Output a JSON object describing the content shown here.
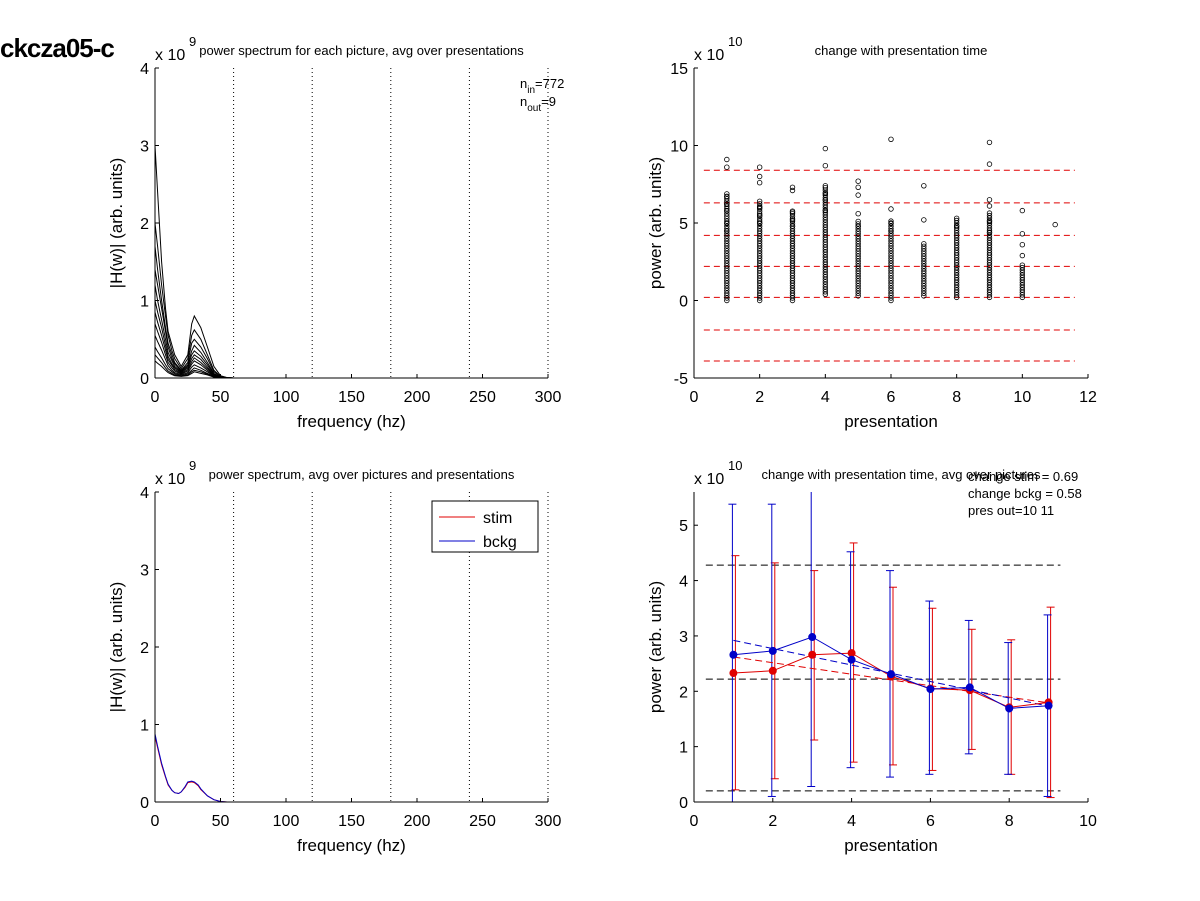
{
  "figure": {
    "suptitle": "ckcza05-c"
  },
  "chart_data": [
    {
      "type": "line",
      "title": "power spectrum for each picture, avg over presentations",
      "xlabel": "frequency (hz)",
      "ylabel": "|H(w)| (arb. units)",
      "xlim": [
        0,
        300
      ],
      "ylim": [
        0,
        4
      ],
      "xticks": [
        0,
        50,
        100,
        150,
        200,
        250,
        300
      ],
      "yticks": [
        0,
        1,
        2,
        3,
        4
      ],
      "y_exponent": {
        "base": "x 10",
        "power": "9"
      },
      "vlines_dotted": [
        60,
        120,
        180,
        240,
        300
      ],
      "annotations": [
        {
          "main": "n",
          "sub": "in",
          "value": "=772"
        },
        {
          "main": "n",
          "sub": "out",
          "value": "=9"
        }
      ],
      "series": [
        {
          "freq": [
            0,
            2,
            5,
            8,
            10,
            13,
            15,
            20,
            25,
            28,
            30,
            35,
            40,
            45,
            50,
            55,
            60,
            300
          ],
          "values": [
            3.0,
            2.4,
            1.5,
            0.9,
            0.6,
            0.42,
            0.3,
            0.15,
            0.3,
            0.7,
            0.8,
            0.65,
            0.4,
            0.15,
            0.03,
            0.005,
            0,
            0
          ]
        },
        {
          "freq": [
            0,
            2,
            5,
            8,
            10,
            13,
            15,
            20,
            25,
            28,
            30,
            35,
            40,
            45,
            50,
            55,
            60,
            300
          ],
          "values": [
            2.0,
            1.7,
            1.2,
            0.8,
            0.55,
            0.35,
            0.25,
            0.12,
            0.25,
            0.55,
            0.62,
            0.5,
            0.3,
            0.1,
            0.02,
            0.004,
            0,
            0
          ]
        },
        {
          "freq": [
            0,
            2,
            5,
            8,
            10,
            13,
            15,
            20,
            25,
            28,
            30,
            35,
            40,
            45,
            50,
            55,
            60,
            300
          ],
          "values": [
            1.7,
            1.4,
            1.0,
            0.65,
            0.45,
            0.3,
            0.2,
            0.1,
            0.2,
            0.45,
            0.5,
            0.4,
            0.25,
            0.08,
            0.02,
            0.003,
            0,
            0
          ]
        },
        {
          "freq": [
            0,
            2,
            5,
            8,
            10,
            13,
            15,
            20,
            25,
            28,
            30,
            35,
            40,
            45,
            50,
            55,
            60,
            300
          ],
          "values": [
            1.4,
            1.2,
            0.9,
            0.6,
            0.4,
            0.25,
            0.18,
            0.09,
            0.17,
            0.35,
            0.42,
            0.33,
            0.2,
            0.06,
            0.015,
            0.003,
            0,
            0
          ]
        },
        {
          "freq": [
            0,
            2,
            5,
            8,
            10,
            13,
            15,
            20,
            25,
            28,
            30,
            35,
            40,
            45,
            50,
            55,
            60,
            300
          ],
          "values": [
            1.2,
            1.0,
            0.75,
            0.5,
            0.33,
            0.22,
            0.15,
            0.08,
            0.15,
            0.3,
            0.35,
            0.28,
            0.17,
            0.05,
            0.012,
            0.002,
            0,
            0
          ]
        },
        {
          "freq": [
            0,
            2,
            5,
            8,
            10,
            13,
            15,
            20,
            25,
            28,
            30,
            35,
            40,
            45,
            50,
            55,
            60,
            300
          ],
          "values": [
            1.0,
            0.85,
            0.65,
            0.42,
            0.28,
            0.18,
            0.13,
            0.07,
            0.13,
            0.25,
            0.3,
            0.24,
            0.14,
            0.04,
            0.01,
            0.002,
            0,
            0
          ]
        },
        {
          "freq": [
            0,
            2,
            5,
            8,
            10,
            13,
            15,
            20,
            25,
            28,
            30,
            35,
            40,
            45,
            50,
            55,
            60,
            300
          ],
          "values": [
            0.85,
            0.72,
            0.55,
            0.36,
            0.24,
            0.16,
            0.11,
            0.06,
            0.11,
            0.21,
            0.26,
            0.2,
            0.12,
            0.035,
            0.008,
            0.002,
            0,
            0
          ]
        },
        {
          "freq": [
            0,
            2,
            5,
            8,
            10,
            13,
            15,
            20,
            25,
            28,
            30,
            35,
            40,
            45,
            50,
            55,
            60,
            300
          ],
          "values": [
            0.7,
            0.6,
            0.46,
            0.3,
            0.2,
            0.13,
            0.09,
            0.05,
            0.09,
            0.18,
            0.22,
            0.17,
            0.1,
            0.03,
            0.007,
            0.001,
            0,
            0
          ]
        },
        {
          "freq": [
            0,
            2,
            5,
            8,
            10,
            13,
            15,
            20,
            25,
            28,
            30,
            35,
            40,
            45,
            50,
            55,
            60,
            300
          ],
          "values": [
            0.55,
            0.47,
            0.36,
            0.24,
            0.16,
            0.1,
            0.07,
            0.04,
            0.07,
            0.14,
            0.17,
            0.13,
            0.08,
            0.025,
            0.006,
            0.001,
            0,
            0
          ]
        },
        {
          "freq": [
            0,
            2,
            5,
            8,
            10,
            13,
            15,
            20,
            25,
            28,
            30,
            35,
            40,
            45,
            50,
            55,
            60,
            300
          ],
          "values": [
            0.4,
            0.34,
            0.26,
            0.17,
            0.12,
            0.08,
            0.055,
            0.03,
            0.055,
            0.1,
            0.13,
            0.1,
            0.06,
            0.02,
            0.005,
            0.001,
            0,
            0
          ]
        },
        {
          "freq": [
            0,
            2,
            5,
            8,
            10,
            13,
            15,
            20,
            25,
            28,
            30,
            35,
            40,
            45,
            50,
            55,
            60,
            300
          ],
          "values": [
            0.3,
            0.26,
            0.2,
            0.13,
            0.09,
            0.06,
            0.04,
            0.025,
            0.04,
            0.08,
            0.1,
            0.08,
            0.05,
            0.015,
            0.004,
            0.001,
            0,
            0
          ]
        },
        {
          "freq": [
            0,
            2,
            5,
            8,
            10,
            13,
            15,
            20,
            25,
            28,
            30,
            35,
            40,
            45,
            50,
            55,
            60,
            300
          ],
          "values": [
            0.22,
            0.19,
            0.15,
            0.1,
            0.07,
            0.045,
            0.03,
            0.02,
            0.03,
            0.06,
            0.08,
            0.06,
            0.04,
            0.012,
            0.003,
            0.001,
            0,
            0
          ]
        }
      ]
    },
    {
      "type": "scatter",
      "title": "change with presentation time",
      "xlabel": "presentation",
      "ylabel": "power (arb. units)",
      "xlim": [
        0,
        12
      ],
      "ylim": [
        -5,
        15
      ],
      "xticks": [
        0,
        2,
        4,
        6,
        8,
        10,
        12
      ],
      "yticks": [
        -5,
        0,
        5,
        10,
        15
      ],
      "y_exponent": {
        "base": "x 10",
        "power": "10"
      },
      "hlines_dashed_red": [
        8.4,
        6.3,
        4.2,
        2.2,
        0.2,
        -1.9,
        -3.9
      ],
      "columns": [
        {
          "x": 1,
          "ymin": 0.0,
          "ymax": 6.9,
          "outliers": [
            9.1,
            8.6,
            6.7,
            6.2,
            5.8,
            5.0,
            4.5
          ]
        },
        {
          "x": 2,
          "ymin": 0.0,
          "ymax": 6.5,
          "outliers": [
            8.6,
            8.0,
            7.6,
            6.0,
            5.5,
            5.0
          ]
        },
        {
          "x": 3,
          "ymin": 0.0,
          "ymax": 5.8,
          "outliers": [
            7.3,
            7.1,
            5.7,
            5.2,
            4.8
          ]
        },
        {
          "x": 4,
          "ymin": 0.4,
          "ymax": 7.3,
          "outliers": [
            9.8,
            8.7,
            7.4,
            6.9,
            6.5,
            5.8
          ]
        },
        {
          "x": 5,
          "ymin": 0.3,
          "ymax": 5.2,
          "outliers": [
            7.7,
            7.3,
            6.8,
            5.6,
            4.8
          ]
        },
        {
          "x": 6,
          "ymin": 0.0,
          "ymax": 5.2,
          "outliers": [
            10.4,
            5.9,
            5.0,
            4.5
          ]
        },
        {
          "x": 7,
          "ymin": 0.3,
          "ymax": 3.7,
          "outliers": [
            7.4,
            5.2
          ]
        },
        {
          "x": 8,
          "ymin": 0.2,
          "ymax": 5.3,
          "outliers": [
            5.3,
            4.8
          ]
        },
        {
          "x": 9,
          "ymin": 0.2,
          "ymax": 5.7,
          "outliers": [
            10.2,
            8.8,
            6.5,
            6.1,
            5.1,
            4.4
          ]
        },
        {
          "x": 10,
          "ymin": 0.2,
          "ymax": 2.3,
          "outliers": [
            5.8,
            4.3,
            3.6,
            2.9
          ]
        },
        {
          "x": 11,
          "ymin": 4.9,
          "ymax": 4.9,
          "outliers": []
        }
      ]
    },
    {
      "type": "line",
      "title": "power spectrum, avg over pictures and presentations",
      "xlabel": "frequency (hz)",
      "ylabel": "|H(w)| (arb. units)",
      "xlim": [
        0,
        300
      ],
      "ylim": [
        0,
        4
      ],
      "xticks": [
        0,
        50,
        100,
        150,
        200,
        250,
        300
      ],
      "yticks": [
        0,
        1,
        2,
        3,
        4
      ],
      "y_exponent": {
        "base": "x 10",
        "power": "9"
      },
      "vlines_dotted": [
        60,
        120,
        180,
        240,
        300
      ],
      "legend": [
        "stim",
        "bckg"
      ],
      "legend_position": "top-right",
      "x": [
        0,
        2,
        5,
        8,
        10,
        13,
        15,
        18,
        20,
        23,
        25,
        28,
        30,
        33,
        35,
        40,
        45,
        50,
        55,
        300
      ],
      "series": [
        {
          "name": "stim",
          "color": "#e00000",
          "values": [
            0.85,
            0.7,
            0.48,
            0.32,
            0.22,
            0.15,
            0.12,
            0.11,
            0.13,
            0.19,
            0.25,
            0.26,
            0.25,
            0.21,
            0.16,
            0.08,
            0.03,
            0.006,
            0,
            0
          ]
        },
        {
          "name": "bckg",
          "color": "#0000c8",
          "values": [
            0.88,
            0.72,
            0.5,
            0.33,
            0.23,
            0.15,
            0.12,
            0.11,
            0.13,
            0.2,
            0.26,
            0.27,
            0.26,
            0.22,
            0.17,
            0.08,
            0.03,
            0.006,
            0,
            0
          ]
        }
      ]
    },
    {
      "type": "line",
      "title": "change with presentation time, avg over pictures",
      "xlabel": "presentation",
      "ylabel": "power (arb. units)",
      "xlim": [
        0,
        10
      ],
      "ylim": [
        0,
        5.6
      ],
      "xticks": [
        0,
        2,
        4,
        6,
        8,
        10
      ],
      "yticks": [
        0,
        1,
        2,
        3,
        4,
        5
      ],
      "y_exponent": {
        "base": "x 10",
        "power": "10"
      },
      "annotations": [
        "change stim = 0.69",
        "change bckg = 0.58",
        "pres out=10 11"
      ],
      "hlines_dashed_black": [
        4.28,
        2.22,
        0.2
      ],
      "x": [
        1,
        2,
        3,
        4,
        5,
        6,
        7,
        8,
        9
      ],
      "series": [
        {
          "name": "stim",
          "color": "#e00000",
          "values": [
            2.33,
            2.37,
            2.66,
            2.69,
            2.27,
            2.05,
            2.02,
            1.71,
            1.8
          ],
          "err_low": [
            0.22,
            0.42,
            1.12,
            0.72,
            0.67,
            0.57,
            0.95,
            0.5,
            0.08
          ],
          "err_high": [
            4.45,
            4.32,
            4.18,
            4.68,
            3.88,
            3.5,
            3.12,
            2.93,
            3.52
          ],
          "trend": [
            2.62,
            1.79
          ]
        },
        {
          "name": "bckg",
          "color": "#0000c8",
          "values": [
            2.66,
            2.73,
            2.98,
            2.57,
            2.31,
            2.04,
            2.07,
            1.69,
            1.74
          ],
          "err_low": [
            0.0,
            0.1,
            0.28,
            0.62,
            0.45,
            0.5,
            0.87,
            0.5,
            0.1
          ],
          "err_high": [
            5.38,
            5.38,
            5.6,
            4.52,
            4.18,
            3.63,
            3.28,
            2.88,
            3.38
          ],
          "trend": [
            2.92,
            1.73
          ]
        }
      ]
    }
  ]
}
